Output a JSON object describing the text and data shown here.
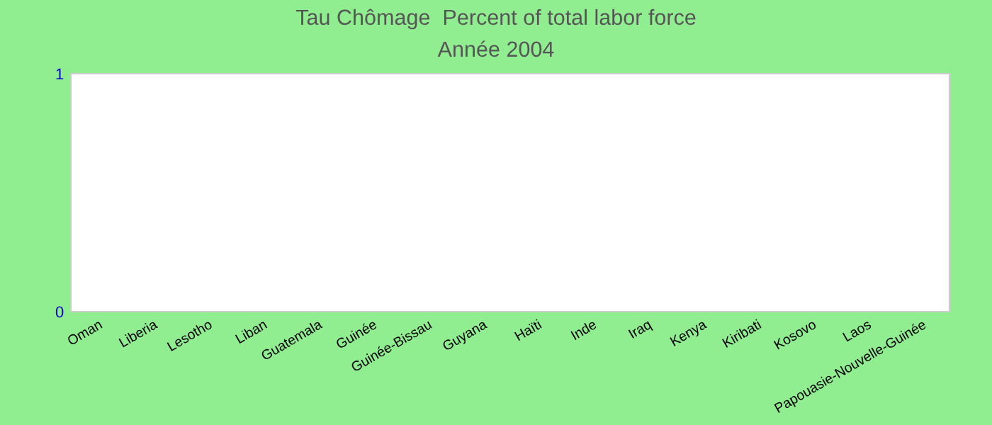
{
  "chart_data": {
    "type": "bar",
    "title": "Tau Chômage  Percent of total labor force",
    "subtitle": "Année 2004",
    "categories": [
      "Oman",
      "Liberia",
      "Lesotho",
      "Liban",
      "Guatemala",
      "Guinée",
      "Guinée-Bissau",
      "Guyana",
      "Haïti",
      "Inde",
      "Iraq",
      "Kenya",
      "Kiribati",
      "Kosovo",
      "Laos",
      "Papouasie-Nouvelle-Guinée"
    ],
    "values": [
      0,
      0,
      0,
      0,
      0,
      0,
      0,
      0,
      0,
      0,
      0,
      0,
      0,
      0,
      0,
      0
    ],
    "ylim": [
      0,
      1
    ],
    "yticks": [
      0,
      1
    ],
    "grid": false,
    "legend": false
  }
}
